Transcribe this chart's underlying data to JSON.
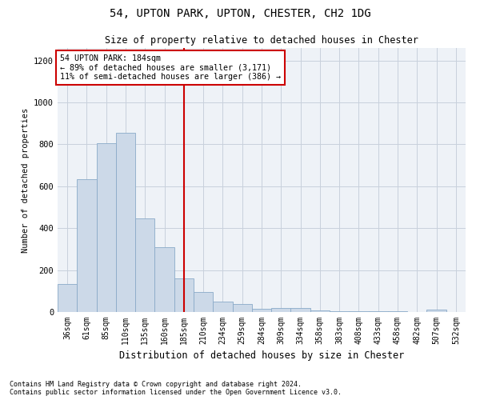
{
  "title1": "54, UPTON PARK, UPTON, CHESTER, CH2 1DG",
  "title2": "Size of property relative to detached houses in Chester",
  "xlabel": "Distribution of detached houses by size in Chester",
  "ylabel": "Number of detached properties",
  "categories": [
    "36sqm",
    "61sqm",
    "85sqm",
    "110sqm",
    "135sqm",
    "160sqm",
    "185sqm",
    "210sqm",
    "234sqm",
    "259sqm",
    "284sqm",
    "309sqm",
    "334sqm",
    "358sqm",
    "383sqm",
    "408sqm",
    "433sqm",
    "458sqm",
    "482sqm",
    "507sqm",
    "532sqm"
  ],
  "values": [
    135,
    635,
    805,
    855,
    445,
    310,
    160,
    95,
    50,
    38,
    15,
    20,
    18,
    8,
    5,
    3,
    2,
    2,
    0,
    12,
    0
  ],
  "bar_color": "#ccd9e8",
  "bar_edge_color": "#8aaac8",
  "highlight_label": "54 UPTON PARK: 184sqm",
  "annotation_line1": "← 89% of detached houses are smaller (3,171)",
  "annotation_line2": "11% of semi-detached houses are larger (386) →",
  "vline_color": "#cc0000",
  "vline_index": 6,
  "ylim": [
    0,
    1260
  ],
  "yticks": [
    0,
    200,
    400,
    600,
    800,
    1000,
    1200
  ],
  "grid_color": "#c8d0dc",
  "bg_color": "#eef2f7",
  "footnote1": "Contains HM Land Registry data © Crown copyright and database right 2024.",
  "footnote2": "Contains public sector information licensed under the Open Government Licence v3.0."
}
